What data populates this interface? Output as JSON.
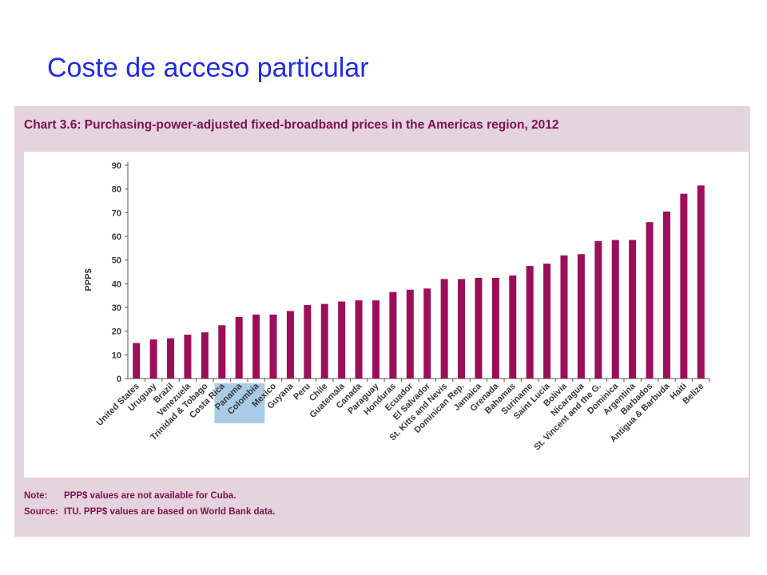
{
  "slide": {
    "title": "Coste de acceso particular"
  },
  "chart_panel": {
    "heading": "Chart 3.6: Purchasing-power-adjusted fixed-broadband prices in the Americas region, 2012",
    "notes": [
      {
        "key": "Note:",
        "text": "PPP$ values are not available for Cuba."
      },
      {
        "key": "Source:",
        "text": "ITU. PPP$ values are based on World Bank data."
      }
    ]
  },
  "colors": {
    "bar": "#9b0f5a",
    "highlight": "#a8cbe6",
    "panel": "#e5d3de",
    "title": "#1f2de0",
    "heading": "#7d1150"
  },
  "chart_data": {
    "type": "bar",
    "title": "",
    "xlabel": "",
    "ylabel": "PPP$",
    "ylim": [
      0,
      90
    ],
    "yticks": [
      0,
      10,
      20,
      30,
      40,
      50,
      60,
      70,
      80,
      90
    ],
    "grid": false,
    "highlighted": [
      "Panama",
      "Colombia"
    ],
    "categories": [
      "United States",
      "Uruguay",
      "Brazil",
      "Venezuela",
      "Trinidad & Tobago",
      "Costa Rica",
      "Panama",
      "Colombia",
      "Mexico",
      "Guyana",
      "Peru",
      "Chile",
      "Guatemala",
      "Canada",
      "Paraguay",
      "Honduras",
      "Ecuador",
      "El Salvador",
      "St. Kitts and Nevis",
      "Dominican Rep.",
      "Jamaica",
      "Grenada",
      "Bahamas",
      "Suriname",
      "Saint Lucia",
      "Bolivia",
      "Nicaragua",
      "St. Vincent and the G.",
      "Dominica",
      "Argentina",
      "Barbados",
      "Antigua & Barbuda",
      "Haiti",
      "Belize"
    ],
    "values": [
      15,
      16.5,
      17,
      18.5,
      19.5,
      22.5,
      26,
      27,
      27,
      28.5,
      31,
      31.5,
      32.5,
      33,
      33,
      36.5,
      37.5,
      38,
      42,
      42,
      42.5,
      42.5,
      43.5,
      47.5,
      48.5,
      52,
      52.5,
      58,
      58.5,
      58.5,
      66,
      70.5,
      78,
      81.5
    ]
  }
}
